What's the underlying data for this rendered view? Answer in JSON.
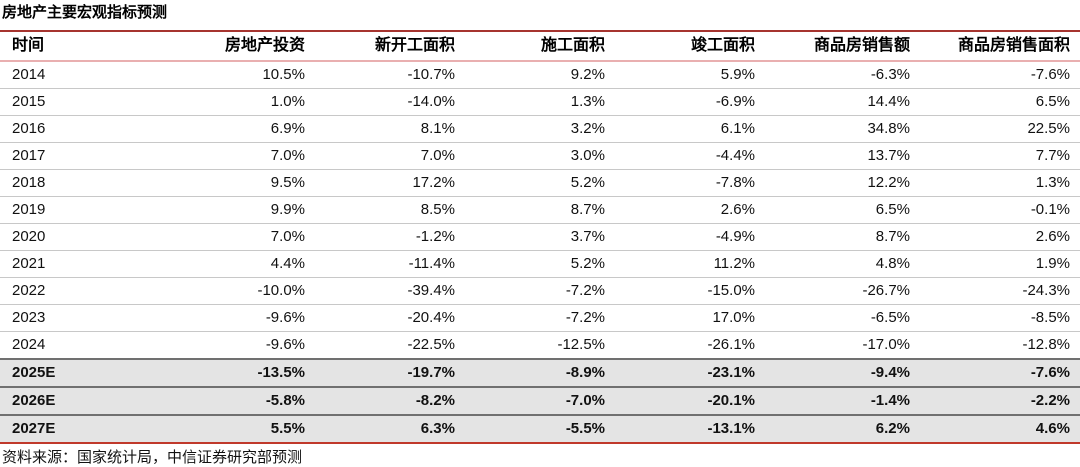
{
  "chart_data": {
    "type": "table",
    "title": "房地产主要宏观指标预测",
    "source": "资料来源：国家统计局，中信证券研究部预测",
    "columns": [
      "时间",
      "房地产投资",
      "新开工面积",
      "施工面积",
      "竣工面积",
      "商品房销售额",
      "商品房销售面积"
    ],
    "rows": [
      {
        "time": "2014",
        "forecast": false,
        "cells": [
          "10.5%",
          "-10.7%",
          "9.2%",
          "5.9%",
          "-6.3%",
          "-7.6%"
        ]
      },
      {
        "time": "2015",
        "forecast": false,
        "cells": [
          "1.0%",
          "-14.0%",
          "1.3%",
          "-6.9%",
          "14.4%",
          "6.5%"
        ]
      },
      {
        "time": "2016",
        "forecast": false,
        "cells": [
          "6.9%",
          "8.1%",
          "3.2%",
          "6.1%",
          "34.8%",
          "22.5%"
        ]
      },
      {
        "time": "2017",
        "forecast": false,
        "cells": [
          "7.0%",
          "7.0%",
          "3.0%",
          "-4.4%",
          "13.7%",
          "7.7%"
        ]
      },
      {
        "time": "2018",
        "forecast": false,
        "cells": [
          "9.5%",
          "17.2%",
          "5.2%",
          "-7.8%",
          "12.2%",
          "1.3%"
        ]
      },
      {
        "time": "2019",
        "forecast": false,
        "cells": [
          "9.9%",
          "8.5%",
          "8.7%",
          "2.6%",
          "6.5%",
          "-0.1%"
        ]
      },
      {
        "time": "2020",
        "forecast": false,
        "cells": [
          "7.0%",
          "-1.2%",
          "3.7%",
          "-4.9%",
          "8.7%",
          "2.6%"
        ]
      },
      {
        "time": "2021",
        "forecast": false,
        "cells": [
          "4.4%",
          "-11.4%",
          "5.2%",
          "11.2%",
          "4.8%",
          "1.9%"
        ]
      },
      {
        "time": "2022",
        "forecast": false,
        "cells": [
          "-10.0%",
          "-39.4%",
          "-7.2%",
          "-15.0%",
          "-26.7%",
          "-24.3%"
        ]
      },
      {
        "time": "2023",
        "forecast": false,
        "cells": [
          "-9.6%",
          "-20.4%",
          "-7.2%",
          "17.0%",
          "-6.5%",
          "-8.5%"
        ]
      },
      {
        "time": "2024",
        "forecast": false,
        "cells": [
          "-9.6%",
          "-22.5%",
          "-12.5%",
          "-26.1%",
          "-17.0%",
          "-12.8%"
        ]
      },
      {
        "time": "2025E",
        "forecast": true,
        "cells": [
          "-13.5%",
          "-19.7%",
          "-8.9%",
          "-23.1%",
          "-9.4%",
          "-7.6%"
        ]
      },
      {
        "time": "2026E",
        "forecast": true,
        "cells": [
          "-5.8%",
          "-8.2%",
          "-7.0%",
          "-20.1%",
          "-1.4%",
          "-2.2%"
        ]
      },
      {
        "time": "2027E",
        "forecast": true,
        "cells": [
          "5.5%",
          "6.3%",
          "-5.5%",
          "-13.1%",
          "6.2%",
          "4.6%"
        ]
      }
    ]
  },
  "colors": {
    "top_rule": "#A6342F",
    "header_underline": "#E9AFB0",
    "row_border": "#C8C8C8",
    "forecast_border": "#707070",
    "forecast_bg": "#E4E4E4",
    "bottom_rule": "#C0392B"
  }
}
